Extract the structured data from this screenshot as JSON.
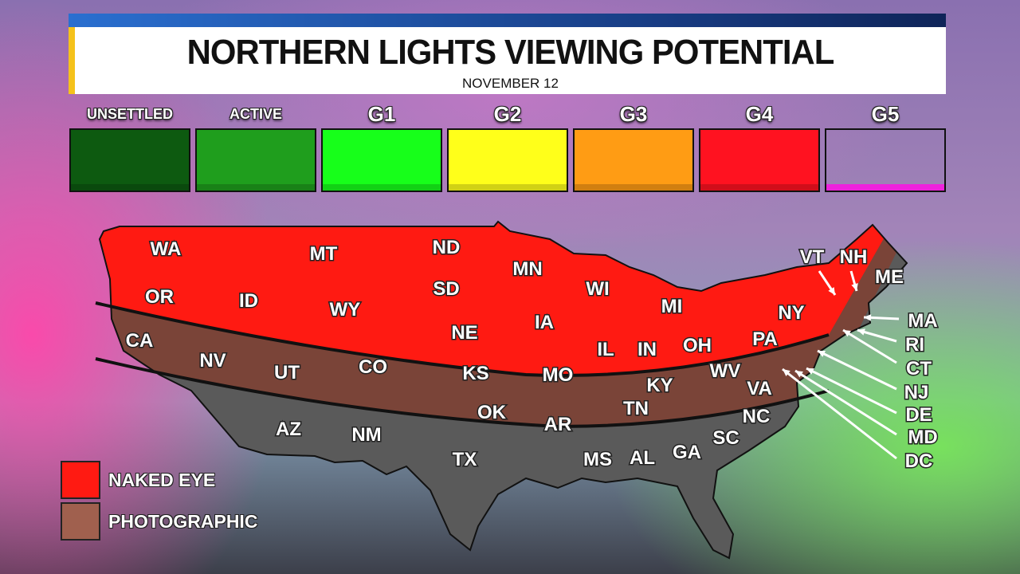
{
  "header": {
    "title": "NORTHERN LIGHTS VIEWING POTENTIAL",
    "subtitle": "NOVEMBER 12"
  },
  "scale": [
    {
      "label": "UNSETTLED",
      "color": "#0d5a10"
    },
    {
      "label": "ACTIVE",
      "color": "#1f9e1d"
    },
    {
      "label": "G1",
      "color": "#17ff1a"
    },
    {
      "label": "G2",
      "color": "#ffff1a"
    },
    {
      "label": "G3",
      "color": "#ff9c14"
    },
    {
      "label": "G4",
      "color": "#ff1220"
    },
    {
      "label": "G5",
      "color": "transparent"
    }
  ],
  "colors": {
    "naked_eye": "#ff1a12",
    "photographic": "#7a4438",
    "none": "#5a5a5a"
  },
  "states": [
    "WA",
    "OR",
    "CA",
    "ID",
    "NV",
    "MT",
    "WY",
    "UT",
    "AZ",
    "CO",
    "NM",
    "ND",
    "SD",
    "NE",
    "KS",
    "OK",
    "TX",
    "MN",
    "IA",
    "MO",
    "AR",
    "WI",
    "IL",
    "MI",
    "IN",
    "OH",
    "KY",
    "TN",
    "MS",
    "AL",
    "GA",
    "SC",
    "NC",
    "VA",
    "WV",
    "PA",
    "NY",
    "ME",
    "VT",
    "NH",
    "MA",
    "RI",
    "CT",
    "NJ",
    "DE",
    "MD",
    "DC"
  ],
  "legend": [
    {
      "label": "NAKED EYE",
      "color": "#ff1a12"
    },
    {
      "label": "PHOTOGRAPHIC",
      "color": "#a0604e"
    }
  ]
}
